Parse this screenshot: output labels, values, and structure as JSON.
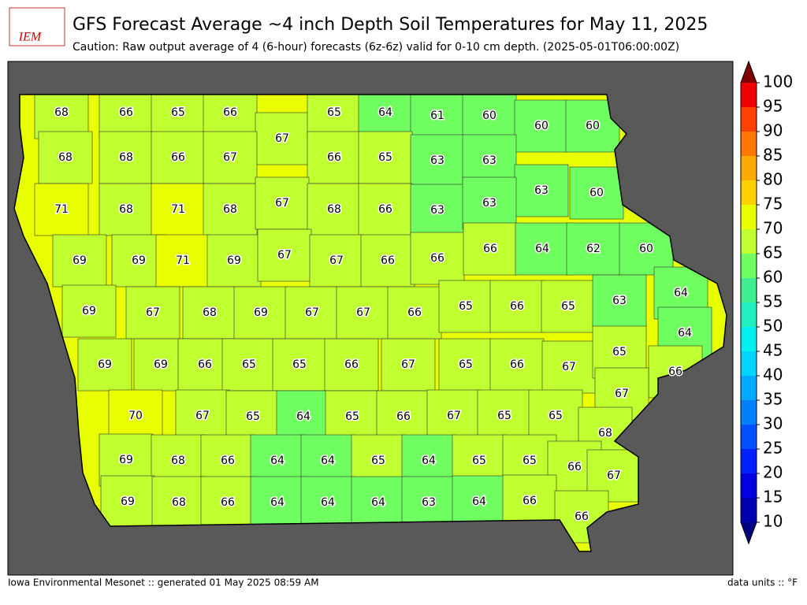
{
  "title": "GFS Forecast Average ~4 inch Depth Soil Temperatures for May 11, 2025",
  "subtitle": "Caution: Raw output average of 4 (6-hour) forecasts (6z-6z) valid for 0-10 cm depth. (2025-05-01T06:00:00Z)",
  "logo_text": "IEM",
  "footer_left": "Iowa Environmental Mesonet :: generated 01 May 2025 08:59 AM",
  "footer_right": "data units :: °F",
  "county_values": [
    68,
    66,
    65,
    66,
    67,
    65,
    64,
    61,
    60,
    60,
    60,
    68,
    68,
    66,
    67,
    66,
    65,
    63,
    63,
    63,
    60,
    71,
    68,
    71,
    68,
    67,
    68,
    66,
    63,
    63,
    69,
    69,
    71,
    69,
    67,
    67,
    66,
    66,
    66,
    64,
    62,
    60,
    69,
    67,
    68,
    69,
    67,
    67,
    66,
    65,
    66,
    65,
    63,
    64,
    64,
    69,
    69,
    66,
    65,
    65,
    66,
    67,
    65,
    66,
    67,
    65,
    66,
    70,
    67,
    65,
    64,
    65,
    66,
    67,
    65,
    65,
    67,
    68,
    69,
    68,
    66,
    64,
    64,
    65,
    64,
    65,
    65,
    66,
    67,
    69,
    68,
    66,
    64,
    64,
    64,
    63,
    64,
    66,
    66
  ],
  "colorbar": {
    "ticks": [
      10,
      15,
      20,
      25,
      30,
      35,
      40,
      45,
      50,
      55,
      60,
      65,
      70,
      75,
      80,
      85,
      90,
      95,
      100
    ],
    "colors": [
      "#0000b0",
      "#0000e0",
      "#0020ff",
      "#0050ff",
      "#0080ff",
      "#00aaff",
      "#00d4ff",
      "#00f0f0",
      "#20f0c0",
      "#40f090",
      "#70ff60",
      "#c0ff30",
      "#e8ff00",
      "#ffd000",
      "#ffaa00",
      "#ff7800",
      "#ff4000",
      "#f00000",
      "#b00000"
    ],
    "under_color": "#000080",
    "over_color": "#800000"
  }
}
